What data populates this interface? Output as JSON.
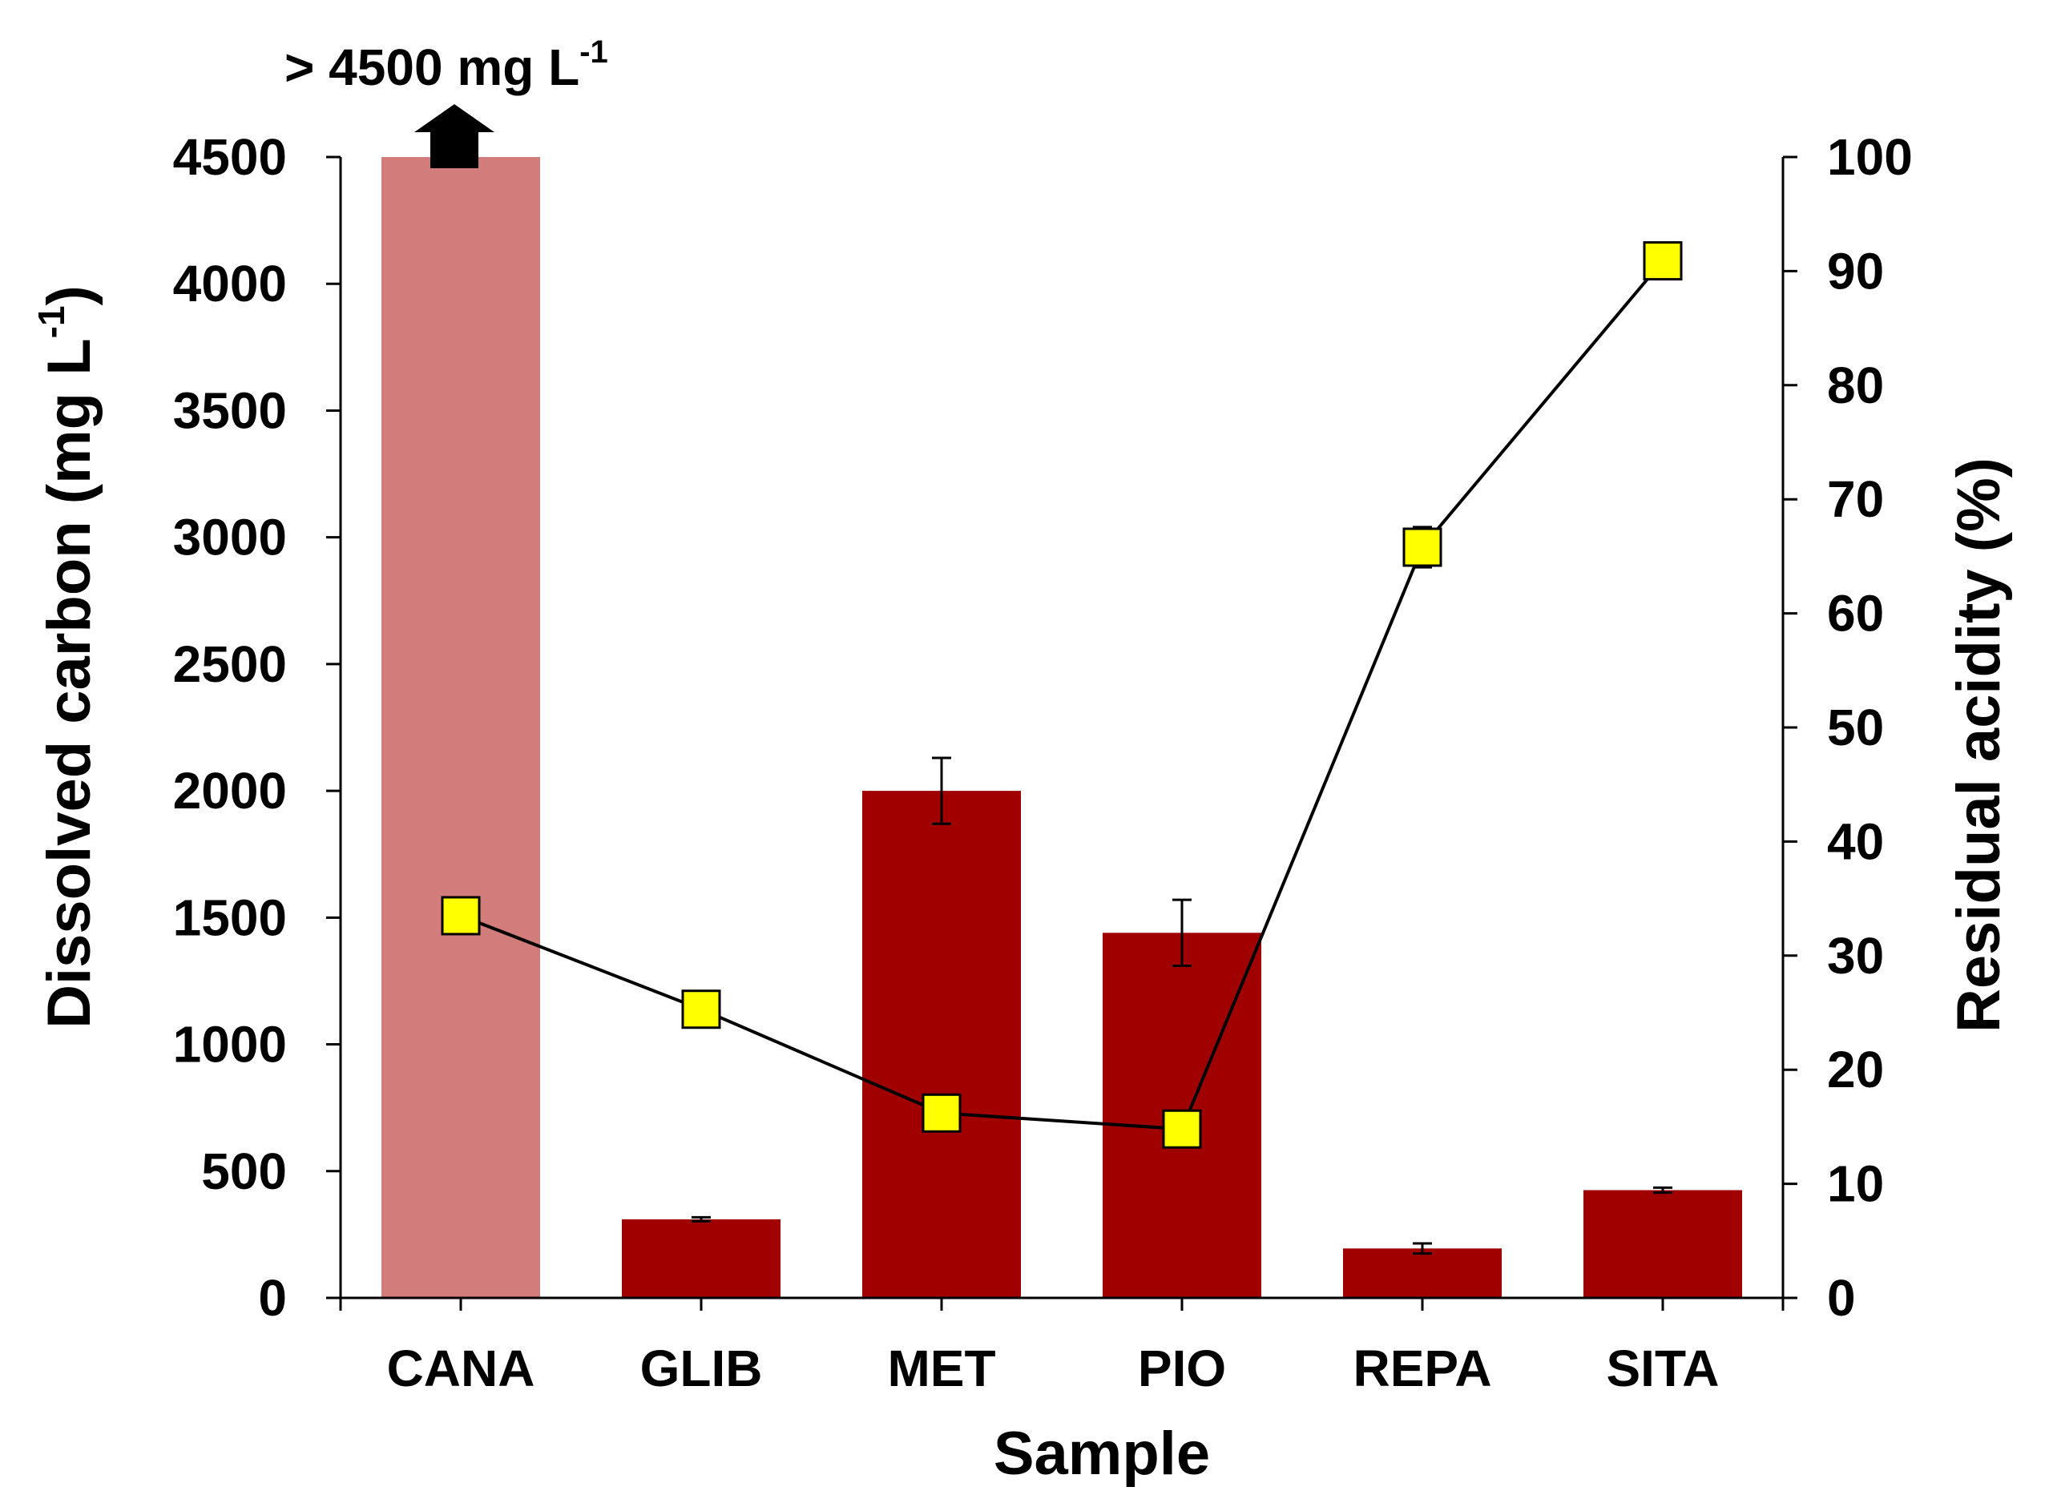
{
  "chart_data": {
    "type": "bar",
    "categories": [
      "CANA",
      "GLIB",
      "MET",
      "PIO",
      "REPA",
      "SITA"
    ],
    "xlabel": "Sample",
    "ylabel_left": {
      "prefix": "Dissolved carbon (mg L",
      "superscript": "-1",
      "suffix": ")"
    },
    "ylabel_right": "Residual acidity (%)",
    "y_left_lim": [
      0,
      4500
    ],
    "y_left_ticks": [
      0,
      500,
      1000,
      1500,
      2000,
      2500,
      3000,
      3500,
      4000,
      4500
    ],
    "y_right_lim": [
      0,
      100
    ],
    "y_right_ticks": [
      0,
      10,
      20,
      30,
      40,
      50,
      60,
      70,
      80,
      90,
      100
    ],
    "series": [
      {
        "name": "Dissolved carbon",
        "axis": "left",
        "kind": "bar",
        "values": [
          4500,
          310,
          2000,
          1440,
          195,
          425
        ],
        "errors": [
          0,
          8,
          130,
          130,
          20,
          10
        ],
        "colors": [
          "#D27C7C",
          "#A00000",
          "#A00000",
          "#A00000",
          "#A00000",
          "#A00000"
        ]
      },
      {
        "name": "Residual acidity",
        "axis": "right",
        "kind": "line",
        "marker": "square",
        "values": [
          33.5,
          25.3,
          16.2,
          14.8,
          65.8,
          90.9
        ],
        "errors": [
          0,
          0,
          0.5,
          0,
          1.2,
          0
        ],
        "marker_color": "#FFFF00",
        "line_color": "#000000"
      }
    ],
    "annotations": [
      {
        "target": "CANA",
        "prefix": "> 4500 mg L",
        "superscript": "-1",
        "arrow": "up"
      }
    ],
    "legend": "none",
    "grid": false
  }
}
